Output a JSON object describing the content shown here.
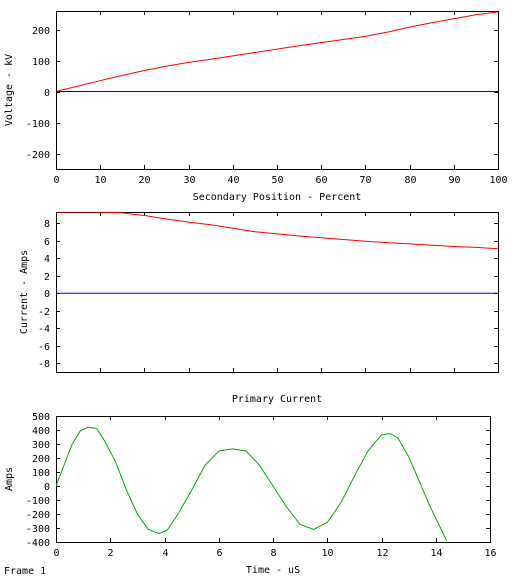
{
  "frame_label": "Frame 1",
  "chart_data": [
    {
      "type": "line",
      "title": "",
      "xlabel": "Secondary Position - Percent",
      "ylabel": "Voltage - kV",
      "xlim": [
        0,
        100
      ],
      "ylim": [
        -250,
        260
      ],
      "xticks": [
        0,
        10,
        20,
        30,
        40,
        50,
        60,
        70,
        80,
        90,
        100
      ],
      "yticks": [
        -200,
        -100,
        0,
        100,
        200
      ],
      "grid": false,
      "series": [
        {
          "color": "#ff0000",
          "x": [
            0,
            5,
            10,
            15,
            20,
            25,
            30,
            35,
            40,
            45,
            50,
            55,
            60,
            65,
            70,
            75,
            80,
            85,
            90,
            95,
            100
          ],
          "y": [
            0,
            18,
            35,
            52,
            68,
            82,
            94,
            104,
            115,
            126,
            137,
            148,
            158,
            168,
            178,
            192,
            208,
            222,
            235,
            248,
            257
          ]
        },
        {
          "color": "#0000ff",
          "x": [
            0,
            100
          ],
          "y": [
            0,
            0
          ]
        }
      ]
    },
    {
      "type": "line",
      "title": "",
      "xlabel": "",
      "ylabel": "Current - Amps",
      "xlim": [
        0,
        100
      ],
      "ylim": [
        -9,
        9.3
      ],
      "xticks": [
        0,
        10,
        20,
        30,
        40,
        50,
        60,
        70,
        80,
        90,
        100
      ],
      "yticks": [
        -8,
        -6,
        -4,
        -2,
        0,
        2,
        4,
        6,
        8
      ],
      "show_xtick_labels": false,
      "grid": false,
      "series": [
        {
          "color": "#ff0000",
          "x": [
            0,
            10,
            15,
            20,
            25,
            30,
            35,
            40,
            45,
            50,
            55,
            60,
            65,
            70,
            75,
            80,
            85,
            90,
            95,
            100
          ],
          "y": [
            9.3,
            9.3,
            9.2,
            8.9,
            8.5,
            8.15,
            7.85,
            7.45,
            7.05,
            6.8,
            6.55,
            6.35,
            6.15,
            5.95,
            5.8,
            5.65,
            5.5,
            5.35,
            5.25,
            5.1
          ]
        },
        {
          "color": "#0000ff",
          "x": [
            0,
            100
          ],
          "y": [
            0,
            0
          ]
        }
      ]
    },
    {
      "type": "line",
      "title": "Primary Current",
      "xlabel": "Time - uS",
      "ylabel": "Amps",
      "xlim": [
        0,
        16
      ],
      "ylim": [
        -400,
        500
      ],
      "xticks": [
        0,
        2,
        4,
        6,
        8,
        10,
        12,
        14,
        16
      ],
      "yticks": [
        -400,
        -300,
        -200,
        -100,
        0,
        100,
        200,
        300,
        400,
        500
      ],
      "grid": false,
      "series": [
        {
          "color": "#00aa00",
          "x": [
            0,
            0.3,
            0.6,
            0.9,
            1.2,
            1.5,
            1.8,
            2.2,
            2.6,
            3.0,
            3.4,
            3.8,
            4.1,
            4.5,
            5.0,
            5.5,
            6.0,
            6.5,
            7.0,
            7.5,
            8.0,
            8.5,
            9.0,
            9.5,
            10.0,
            10.5,
            11.0,
            11.5,
            12.0,
            12.3,
            12.6,
            13.0,
            13.4,
            13.8,
            14.2,
            14.4
          ],
          "y": [
            0,
            150,
            300,
            395,
            420,
            410,
            320,
            170,
            -30,
            -200,
            -310,
            -340,
            -315,
            -200,
            -30,
            150,
            250,
            265,
            250,
            150,
            0,
            -150,
            -275,
            -310,
            -260,
            -120,
            70,
            250,
            365,
            375,
            345,
            210,
            30,
            -150,
            -310,
            -390
          ]
        }
      ]
    }
  ]
}
